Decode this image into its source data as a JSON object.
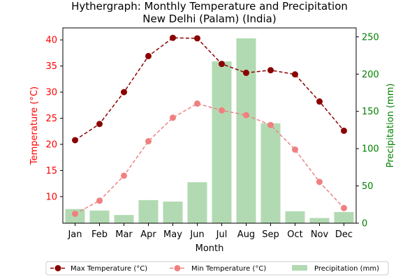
{
  "chart_data": {
    "type": "bar",
    "title": "Hythergraph: Monthly Temperature and Precipitation",
    "subtitle": "New Delhi (Palam) (India)",
    "xlabel": "Month",
    "ylabel_left": "Temperature (°C)",
    "ylabel_right": "Precipitation (mm)",
    "categories": [
      "Jan",
      "Feb",
      "Mar",
      "Apr",
      "May",
      "Jun",
      "Jul",
      "Aug",
      "Sep",
      "Oct",
      "Nov",
      "Dec"
    ],
    "ylim_left": [
      4.9,
      42.3
    ],
    "ylim_right": [
      0,
      262
    ],
    "yticks_left": [
      10,
      15,
      20,
      25,
      30,
      35,
      40
    ],
    "yticks_right": [
      0,
      50,
      100,
      150,
      200,
      250
    ],
    "series": [
      {
        "name": "Max Temperature (°C)",
        "axis": "left",
        "kind": "line",
        "style": "dashed",
        "marker": "circle",
        "color": "#8b0000",
        "values": [
          20.8,
          23.9,
          30.0,
          36.9,
          40.4,
          40.3,
          35.4,
          33.7,
          34.2,
          33.4,
          28.2,
          22.6
        ]
      },
      {
        "name": "Min Temperature (°C)",
        "axis": "left",
        "kind": "line",
        "style": "dashed",
        "marker": "circle",
        "color": "#f08080",
        "values": [
          6.7,
          9.2,
          14.0,
          20.6,
          25.1,
          27.8,
          26.5,
          25.6,
          23.7,
          19.0,
          12.8,
          7.8
        ]
      },
      {
        "name": "Precipitation (mm)",
        "axis": "right",
        "kind": "bar",
        "color": "#b2dab2",
        "values": [
          19,
          17,
          11,
          31,
          29,
          55,
          217,
          248,
          134,
          16,
          7,
          15
        ]
      }
    ],
    "grid": false,
    "legend_position": "bottom-center",
    "colors": {
      "left_axis": "#ff0000",
      "right_axis": "#008000"
    }
  }
}
